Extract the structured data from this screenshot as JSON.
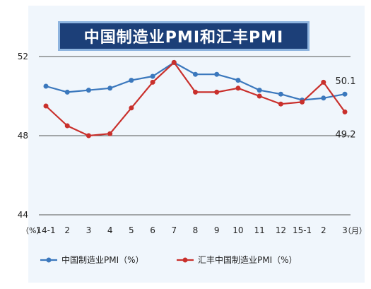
{
  "chart_data": {
    "type": "line",
    "title": "中国制造业PMI和汇丰PMI",
    "categories": [
      "14-1",
      "2",
      "3",
      "4",
      "5",
      "6",
      "7",
      "8",
      "9",
      "10",
      "11",
      "12",
      "15-1",
      "2",
      "3"
    ],
    "x_unit": "（月）",
    "y_unit": "（%）",
    "ylim": [
      44,
      52
    ],
    "yticks": [
      44,
      48,
      52
    ],
    "grid": "horizontal",
    "legend_position": "bottom",
    "series": [
      {
        "name": "中国制造业PMI（%）",
        "color": "#3b78bd",
        "values": [
          50.5,
          50.2,
          50.3,
          50.4,
          50.8,
          51.0,
          51.7,
          51.1,
          51.1,
          50.8,
          50.3,
          50.1,
          49.8,
          49.9,
          50.1
        ],
        "end_label": "50.1"
      },
      {
        "name": "汇丰中国制造业PMI（%）",
        "color": "#c9302c",
        "values": [
          49.5,
          48.5,
          48.0,
          48.1,
          49.4,
          50.7,
          51.7,
          50.2,
          50.2,
          50.4,
          50.0,
          49.6,
          49.7,
          50.7,
          49.2
        ],
        "end_label": "49.2"
      }
    ]
  }
}
